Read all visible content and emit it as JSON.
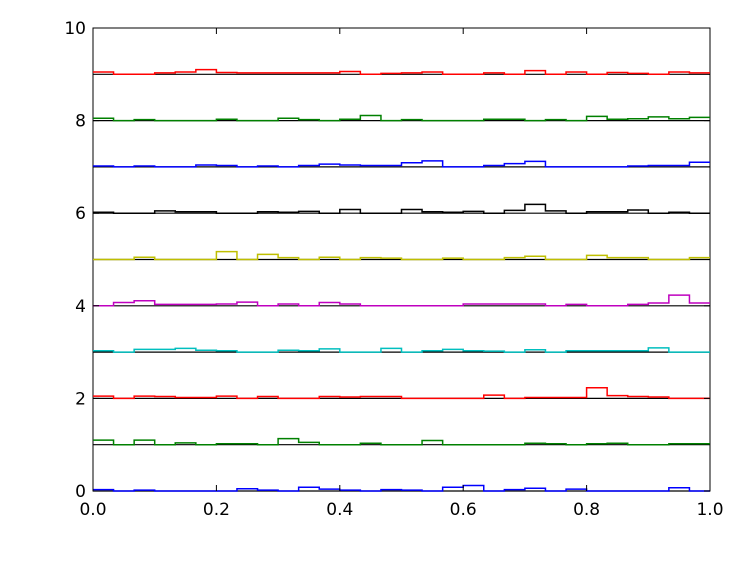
{
  "chart_data": {
    "type": "histogram-stack",
    "title": "",
    "xlabel": "",
    "ylabel": "",
    "xlim": [
      0.0,
      1.0
    ],
    "ylim": [
      0,
      10
    ],
    "grid": false,
    "x_ticks": [
      0.0,
      0.2,
      0.4,
      0.6,
      0.8,
      1.0
    ],
    "x_tick_labels": [
      "0.0",
      "0.2",
      "0.4",
      "0.6",
      "0.8",
      "1.0"
    ],
    "y_ticks": [
      0,
      2,
      4,
      6,
      8,
      10
    ],
    "y_tick_labels": [
      "0",
      "2",
      "4",
      "6",
      "8",
      "10"
    ],
    "bin_edges": [
      0.0,
      0.0333,
      0.0667,
      0.1,
      0.1333,
      0.1667,
      0.2,
      0.2333,
      0.2667,
      0.3,
      0.3333,
      0.3667,
      0.4,
      0.4333,
      0.4667,
      0.5,
      0.5333,
      0.5667,
      0.6,
      0.6333,
      0.6667,
      0.7,
      0.7333,
      0.7667,
      0.8,
      0.8333,
      0.8667,
      0.9,
      0.9333,
      0.9667,
      1.0
    ],
    "series": [
      {
        "baseline": 0,
        "color": "#0000ff",
        "values": [
          0.03,
          0,
          0.02,
          0,
          0,
          0,
          0,
          0.05,
          0.02,
          0,
          0.08,
          0.04,
          0.02,
          0,
          0.03,
          0.02,
          0,
          0.08,
          0.12,
          0,
          0.03,
          0.06,
          0,
          0.04,
          0,
          0,
          0,
          0,
          0.07,
          0
        ]
      },
      {
        "baseline": 1,
        "color": "#008000",
        "values": [
          0.1,
          0,
          0.1,
          0,
          0.04,
          0,
          0.02,
          0.02,
          0,
          0.13,
          0.05,
          0,
          0,
          0.03,
          0,
          0,
          0.09,
          0,
          0,
          0,
          0,
          0.03,
          0.02,
          0,
          0.02,
          0.03,
          0,
          0,
          0.02,
          0.02
        ]
      },
      {
        "baseline": 2,
        "color": "#ff0000",
        "values": [
          0.05,
          0,
          0.05,
          0.04,
          0.02,
          0.02,
          0.05,
          0,
          0.04,
          0,
          0,
          0.04,
          0.03,
          0.04,
          0.04,
          0,
          0,
          0,
          0,
          0.07,
          0,
          0.02,
          0.02,
          0.02,
          0.23,
          0.06,
          0.04,
          0.03,
          0,
          0
        ]
      },
      {
        "baseline": 3,
        "color": "#00bfbf",
        "values": [
          0.03,
          0,
          0.06,
          0.06,
          0.08,
          0.04,
          0.03,
          0,
          0,
          0.04,
          0.03,
          0.07,
          0,
          0,
          0.08,
          0,
          0.03,
          0.06,
          0.03,
          0.02,
          0,
          0.05,
          0,
          0.03,
          0.03,
          0.03,
          0.03,
          0.09,
          0,
          0
        ]
      },
      {
        "baseline": 4,
        "color": "#bf00bf",
        "values": [
          0,
          0.07,
          0.11,
          0.03,
          0.03,
          0.03,
          0.04,
          0.08,
          0,
          0.04,
          0,
          0.07,
          0.04,
          0,
          0,
          0,
          0,
          0,
          0.04,
          0.04,
          0.04,
          0.04,
          0,
          0.03,
          0,
          0,
          0.03,
          0.06,
          0.23,
          0.06
        ]
      },
      {
        "baseline": 5,
        "color": "#bfbf00",
        "values": [
          0,
          0,
          0.05,
          0,
          0,
          0,
          0.17,
          0,
          0.11,
          0.04,
          0,
          0.05,
          0,
          0.04,
          0.03,
          0,
          0,
          0.03,
          0,
          0,
          0.04,
          0.07,
          0,
          0,
          0.09,
          0.04,
          0.04,
          0,
          0,
          0.04
        ]
      },
      {
        "baseline": 6,
        "color": "#000000",
        "values": [
          0.02,
          0,
          0,
          0.05,
          0.03,
          0.03,
          0,
          0,
          0.03,
          0.02,
          0.04,
          0,
          0.08,
          0,
          0,
          0.08,
          0.03,
          0.02,
          0.04,
          0,
          0.06,
          0.19,
          0.05,
          0,
          0.03,
          0.03,
          0.07,
          0,
          0.02,
          0
        ]
      },
      {
        "baseline": 7,
        "color": "#0000ff",
        "values": [
          0.02,
          0,
          0.02,
          0,
          0,
          0.04,
          0.03,
          0,
          0.02,
          0,
          0.03,
          0.06,
          0.04,
          0.03,
          0.03,
          0.09,
          0.13,
          0,
          0,
          0.03,
          0.07,
          0.12,
          0,
          0,
          0,
          0,
          0.02,
          0.03,
          0.03,
          0.1
        ]
      },
      {
        "baseline": 8,
        "color": "#008000",
        "values": [
          0.05,
          0,
          0.02,
          0,
          0,
          0,
          0.03,
          0,
          0,
          0.05,
          0.02,
          0,
          0.03,
          0.11,
          0,
          0.02,
          0,
          0,
          0,
          0.03,
          0.03,
          0,
          0.02,
          0,
          0.09,
          0.03,
          0.04,
          0.08,
          0.04,
          0.07
        ]
      },
      {
        "baseline": 9,
        "color": "#ff0000",
        "values": [
          0.05,
          0,
          0,
          0.03,
          0.05,
          0.1,
          0.04,
          0.03,
          0.03,
          0.03,
          0.03,
          0.03,
          0.06,
          0,
          0.02,
          0.03,
          0.05,
          0,
          0,
          0.03,
          0,
          0.08,
          0,
          0.05,
          0,
          0.04,
          0.02,
          0,
          0.05,
          0.03
        ]
      }
    ]
  }
}
